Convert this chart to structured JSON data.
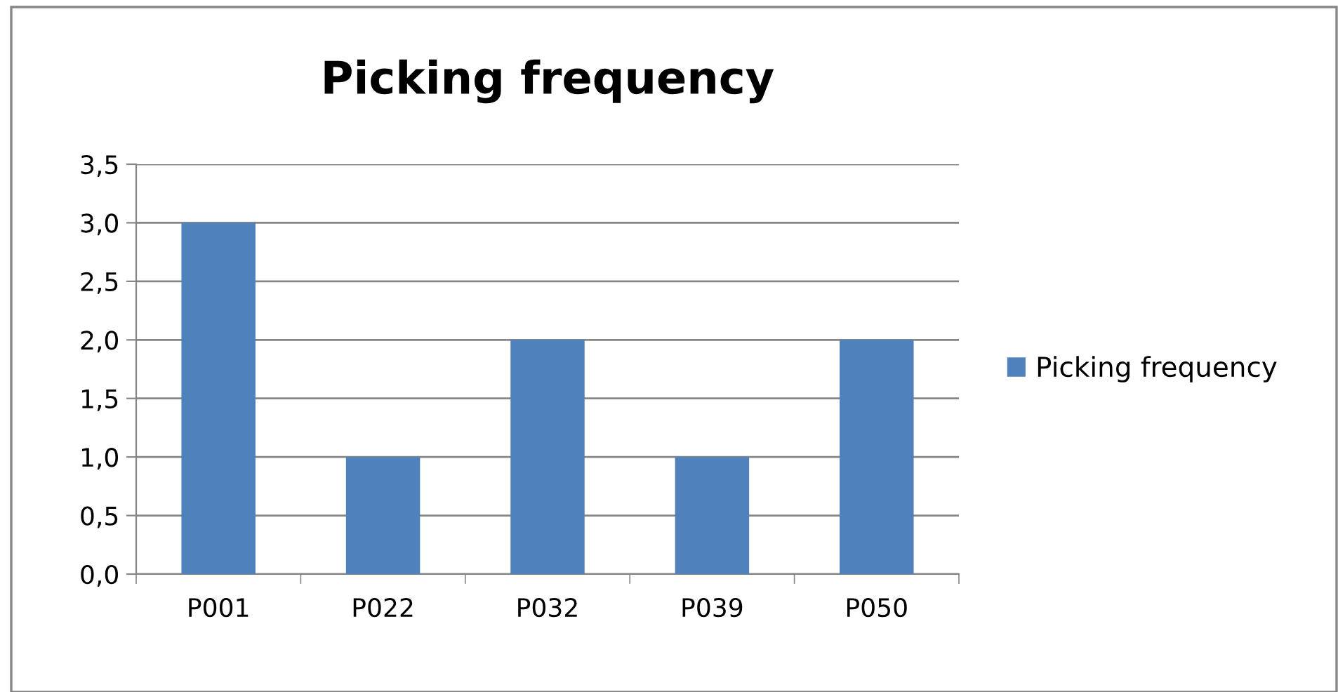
{
  "chart_data": {
    "type": "bar",
    "title": "Picking frequency",
    "categories": [
      "P001",
      "P022",
      "P032",
      "P039",
      "P050"
    ],
    "series": [
      {
        "name": "Picking frequency",
        "color": "#4f81bd",
        "values": [
          3,
          1,
          2,
          1,
          2
        ]
      }
    ],
    "ylim": [
      0,
      3.5
    ],
    "yticks": [
      {
        "value": 0,
        "label": "0,0"
      },
      {
        "value": 0.5,
        "label": "0,5"
      },
      {
        "value": 1,
        "label": "1,0"
      },
      {
        "value": 1.5,
        "label": "1,5"
      },
      {
        "value": 2,
        "label": "2,0"
      },
      {
        "value": 2.5,
        "label": "2,5"
      },
      {
        "value": 3,
        "label": "3,0"
      },
      {
        "value": 3.5,
        "label": "3,5"
      }
    ],
    "grid": "y",
    "legend": "right"
  }
}
